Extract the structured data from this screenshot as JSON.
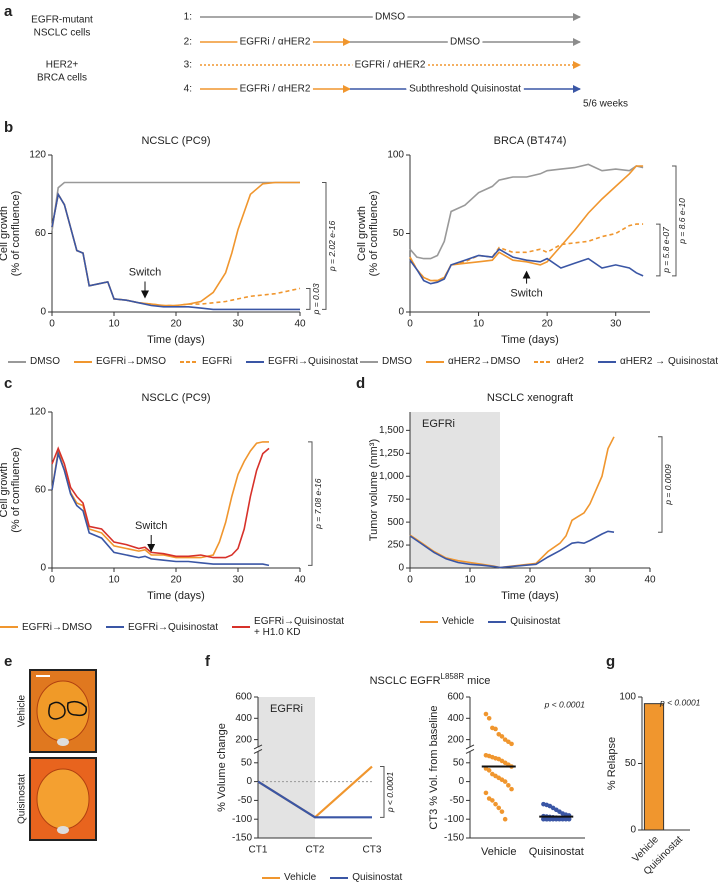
{
  "panel_labels": [
    "a",
    "b",
    "c",
    "d",
    "e",
    "f",
    "g"
  ],
  "schematic": {
    "cell_types": [
      [
        "EGFR-mutant",
        "NSCLC cells"
      ],
      [
        "HER2+",
        "BRCA cells"
      ]
    ],
    "arms": [
      {
        "label": "1:",
        "steps": [
          "DMSO"
        ],
        "colors": [
          "#8c8c8c"
        ]
      },
      {
        "label": "2:",
        "steps": [
          "EGFRi / αHER2",
          "DMSO"
        ],
        "colors": [
          "#f0962e",
          "#8c8c8c"
        ]
      },
      {
        "label": "3:",
        "steps": [
          "EGFRi / αHER2"
        ],
        "colors": [
          "#f0962e"
        ],
        "dotted": true
      },
      {
        "label": "4:",
        "steps": [
          "EGFRi / αHER2",
          "Subthreshold Quisinostat"
        ],
        "colors": [
          "#f0962e",
          "#3a56a5"
        ]
      }
    ],
    "duration": "5/6 weeks"
  },
  "images": {
    "labels": [
      "Vehicle",
      "Quisinostat"
    ]
  },
  "chart_data": [
    {
      "type": "line",
      "title": "NCSLC (PC9)",
      "x_label": "Time (days)",
      "y_label": [
        "Cell growth",
        "(% of confluence)"
      ],
      "xlim": [
        0,
        40
      ],
      "xticks": [
        0,
        10,
        20,
        30,
        40
      ],
      "ylim": [
        0,
        120
      ],
      "yticks": [
        0,
        60,
        120
      ],
      "x": [
        0,
        1,
        2,
        4,
        5,
        6,
        8,
        9,
        10,
        12,
        14,
        16,
        18,
        20,
        22,
        24,
        26,
        28,
        29,
        30,
        32,
        34,
        36,
        38,
        40
      ],
      "series": [
        {
          "name": "DMSO",
          "color": "#999999",
          "values": [
            62,
            95,
            99,
            99,
            99,
            99,
            99,
            99,
            99,
            99,
            99,
            99,
            99,
            99,
            99,
            99,
            99,
            99,
            99,
            99,
            99,
            99,
            99,
            99,
            99
          ]
        },
        {
          "name": "EGFRi→DMSO",
          "color": "#f0962e",
          "values": [
            65,
            90,
            82,
            47,
            45,
            20,
            22,
            23,
            10,
            9,
            7,
            6,
            5,
            5,
            6,
            8,
            15,
            30,
            45,
            63,
            90,
            98,
            99,
            99,
            99
          ]
        },
        {
          "name": "EGFRi",
          "color": "#f0962e",
          "style": "dashed",
          "values": [
            65,
            90,
            82,
            47,
            45,
            20,
            22,
            23,
            10,
            9,
            7,
            6,
            5,
            5,
            6,
            6,
            7,
            8,
            9,
            10,
            12,
            13,
            14,
            16,
            18
          ]
        },
        {
          "name": "EGFRi→Quisinostat",
          "color": "#3a56a5",
          "values": [
            65,
            90,
            82,
            47,
            45,
            20,
            22,
            23,
            10,
            9,
            7,
            5,
            4,
            4,
            4,
            3,
            2,
            2,
            2,
            2,
            2,
            2,
            2,
            2,
            2
          ]
        }
      ],
      "switch_label": "Switch",
      "p_values": [
        "p = 2.02 e-16",
        "p = 0.03"
      ]
    },
    {
      "type": "line",
      "title": "BRCA (BT474)",
      "x_label": "Time (days)",
      "y_label": [
        "Cell growth",
        "(% of confluence)"
      ],
      "xlim": [
        0,
        35
      ],
      "xticks": [
        0,
        10,
        20,
        30
      ],
      "ylim": [
        0,
        100
      ],
      "yticks": [
        0,
        50,
        100
      ],
      "x": [
        0,
        1,
        2,
        3,
        4,
        5,
        6,
        8,
        10,
        12,
        13,
        15,
        17,
        19,
        20,
        22,
        24,
        26,
        28,
        30,
        32,
        33,
        34
      ],
      "series": [
        {
          "name": "DMSO",
          "color": "#999999",
          "values": [
            40,
            35,
            34,
            34,
            36,
            45,
            64,
            68,
            76,
            80,
            84,
            86,
            86,
            88,
            90,
            91,
            92,
            94,
            90,
            91,
            90,
            93,
            92
          ]
        },
        {
          "name": "αHER2→DMSO",
          "color": "#f0962e",
          "values": [
            35,
            27,
            22,
            20,
            20,
            22,
            30,
            31,
            32,
            33,
            38,
            33,
            32,
            30,
            32,
            42,
            52,
            63,
            72,
            80,
            88,
            93,
            93
          ]
        },
        {
          "name": "αHer2",
          "color": "#f0962e",
          "style": "dashed",
          "values": [
            35,
            27,
            22,
            20,
            20,
            22,
            30,
            32,
            36,
            35,
            41,
            38,
            38,
            40,
            38,
            43,
            44,
            45,
            48,
            50,
            55,
            56,
            56
          ]
        },
        {
          "name": "αHER2 → Quisinostat",
          "color": "#3a56a5",
          "values": [
            33,
            27,
            20,
            18,
            19,
            21,
            30,
            33,
            36,
            35,
            40,
            35,
            33,
            32,
            34,
            28,
            31,
            34,
            28,
            30,
            28,
            25,
            23
          ]
        }
      ],
      "switch_label": "Switch",
      "p_values": [
        "p = 5.8 e-07",
        "p = 8.6 e-10"
      ]
    },
    {
      "type": "line",
      "title": "NSCLC (PC9)",
      "x_label": "Time (days)",
      "y_label": [
        "Cell growth",
        "(% of confluence)"
      ],
      "xlim": [
        0,
        40
      ],
      "xticks": [
        0,
        10,
        20,
        30,
        40
      ],
      "ylim": [
        0,
        120
      ],
      "yticks": [
        0,
        60,
        120
      ],
      "x": [
        0,
        1,
        2,
        3,
        4,
        5,
        6,
        8,
        10,
        12,
        14,
        15,
        16,
        18,
        20,
        22,
        24,
        26,
        27,
        28,
        29,
        30,
        31,
        32,
        33,
        34,
        35
      ],
      "series": [
        {
          "name": "EGFRi→DMSO",
          "color": "#f0962e",
          "values": [
            60,
            90,
            75,
            58,
            50,
            48,
            30,
            27,
            17,
            15,
            13,
            14,
            10,
            10,
            8,
            8,
            8,
            10,
            20,
            35,
            55,
            72,
            82,
            90,
            96,
            97,
            97
          ]
        },
        {
          "name": "EGFRi→Quisinostat",
          "color": "#3a56a5",
          "values": [
            60,
            88,
            75,
            57,
            48,
            44,
            27,
            23,
            12,
            10,
            8,
            9,
            7,
            6,
            5,
            5,
            4,
            3,
            3,
            3,
            3,
            3,
            3,
            3,
            3,
            3,
            2
          ]
        },
        {
          "name": "EGFRi→Quisinostat + H1.0 KD",
          "color": "#d7312a",
          "values": [
            80,
            92,
            80,
            62,
            55,
            50,
            32,
            30,
            20,
            18,
            15,
            16,
            12,
            11,
            9,
            9,
            10,
            8,
            8,
            8,
            10,
            15,
            30,
            55,
            75,
            88,
            92
          ]
        }
      ],
      "switch_label": "Switch",
      "p_values": [
        "p = 7.08 e-16"
      ]
    },
    {
      "type": "line",
      "title": "NSCLC xenograft",
      "x_label": "Time (days)",
      "y_label": [
        "Tumor volume (mm³)"
      ],
      "xlim": [
        0,
        40
      ],
      "xticks": [
        0,
        10,
        20,
        30,
        40
      ],
      "ylim": [
        0,
        1700
      ],
      "yticks": [
        0,
        250,
        500,
        750,
        {
          "value": 1000,
          "label": "1,000"
        },
        {
          "value": 1250,
          "label": "1,250"
        },
        {
          "value": 1500,
          "label": "1,500"
        }
      ],
      "shade": {
        "label": "EGFRi",
        "from": 0,
        "to": 15
      },
      "x": [
        0,
        2,
        4,
        6,
        8,
        10,
        12,
        14,
        15,
        21,
        23,
        25,
        26,
        27,
        28,
        29,
        30,
        32,
        33,
        34
      ],
      "series": [
        {
          "name": "Vehicle",
          "color": "#f0962e",
          "values": [
            360,
            270,
            180,
            110,
            80,
            60,
            40,
            20,
            5,
            50,
            180,
            270,
            350,
            520,
            560,
            600,
            700,
            1000,
            1300,
            1430
          ]
        },
        {
          "name": "Quisinostat",
          "color": "#3a56a5",
          "values": [
            350,
            260,
            170,
            100,
            60,
            40,
            30,
            15,
            5,
            40,
            120,
            190,
            230,
            270,
            280,
            270,
            300,
            370,
            400,
            390
          ]
        }
      ],
      "p_values": [
        "p = 0.0009"
      ]
    },
    {
      "type": "line",
      "title": "NSCLC  EGFR",
      "title_sup": "L858R",
      "title_end": " mice",
      "y_label": [
        "% Volume change"
      ],
      "categories": [
        "CT1",
        "CT2",
        "CT3"
      ],
      "ylim": [
        -150,
        600
      ],
      "y_break": [
        75,
        150
      ],
      "yticks": [
        -150,
        -100,
        -50,
        0,
        50,
        200,
        400,
        600
      ],
      "shade": {
        "label": "EGFRi",
        "from": "CT1",
        "to": "CT2"
      },
      "series": [
        {
          "name": "Vehicle",
          "color": "#f0962e",
          "values": [
            0,
            -95,
            40
          ]
        },
        {
          "name": "Quisinostat",
          "color": "#3a56a5",
          "values": [
            0,
            -95,
            -95
          ]
        }
      ],
      "p_values": [
        "p < 0.0001"
      ]
    },
    {
      "type": "strip",
      "y_label": [
        "CT3 % Vol. from baseline"
      ],
      "categories": [
        "Vehicle",
        "Quisinostat"
      ],
      "ylim": [
        -150,
        600
      ],
      "y_break": [
        75,
        150
      ],
      "yticks": [
        -150,
        -100,
        -50,
        0,
        50,
        200,
        400,
        600
      ],
      "colors": [
        "#f0962e",
        "#3a56a5"
      ],
      "values": [
        [
          440,
          400,
          310,
          300,
          250,
          230,
          200,
          180,
          160,
          70,
          68,
          65,
          62,
          60,
          55,
          50,
          45,
          40,
          35,
          30,
          20,
          15,
          10,
          5,
          0,
          -10,
          -20,
          -30,
          -45,
          -50,
          -60,
          -70,
          -80,
          -100
        ],
        [
          -60,
          -62,
          -65,
          -70,
          -75,
          -80,
          -85,
          -88,
          -90,
          -92,
          -93,
          -94,
          -95,
          -96,
          -97,
          -98,
          -98,
          -99,
          -99,
          -100,
          -100,
          -100,
          -100,
          -100,
          -100,
          -100,
          -100,
          -100,
          -100,
          -100
        ]
      ],
      "means": [
        40,
        -93
      ],
      "p_values": [
        "p < 0.0001"
      ]
    },
    {
      "type": "bar",
      "y_label": [
        "% Relapse"
      ],
      "categories": [
        "Vehicle",
        "Quisinostat"
      ],
      "values": [
        95,
        0
      ],
      "color": "#f0962e",
      "ylim": [
        0,
        100
      ],
      "yticks": [
        0,
        50,
        100
      ],
      "p_values": [
        "p < 0.0001"
      ]
    }
  ]
}
